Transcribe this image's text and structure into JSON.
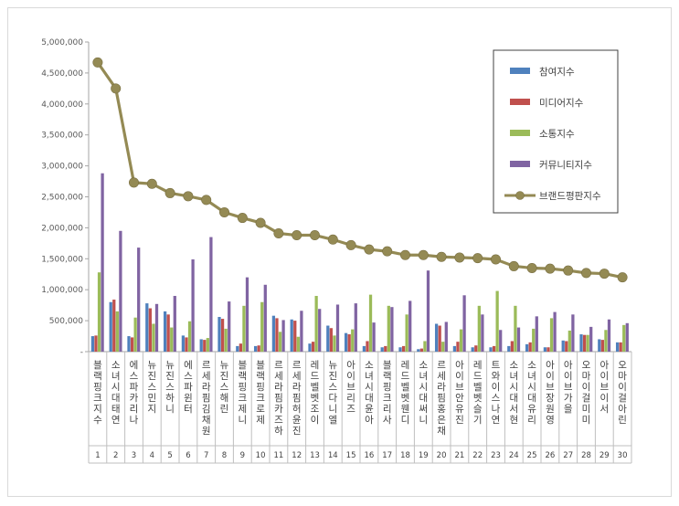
{
  "chart_data": {
    "type": "bar",
    "title": "",
    "xlabel": "",
    "ylabel": "",
    "ylim": [
      0,
      5000000
    ],
    "yticks": [
      "-",
      "500,000",
      "1,000,000",
      "1,500,000",
      "2,000,000",
      "2,500,000",
      "3,000,000",
      "3,500,000",
      "4,000,000",
      "4,500,000",
      "5,000,000"
    ],
    "grid": false,
    "legend_position": "top-right",
    "ranks": [
      "1",
      "2",
      "3",
      "4",
      "5",
      "6",
      "7",
      "8",
      "9",
      "10",
      "11",
      "12",
      "13",
      "14",
      "15",
      "16",
      "17",
      "18",
      "19",
      "20",
      "21",
      "22",
      "23",
      "24",
      "25",
      "26",
      "27",
      "28",
      "29",
      "30"
    ],
    "categories": [
      "블랙핑크 지수",
      "소녀시대 태연",
      "에스파 카리나",
      "뉴진스 민지",
      "뉴진스 하니",
      "에스파 윈터",
      "르세라핌 김채원",
      "뉴진스 해린",
      "블랙핑크 제니",
      "블랙핑크 로제",
      "르세라핌 카즈하",
      "르세라핌 허윤진",
      "레드벨벳 조이",
      "뉴진스 다니엘",
      "아이브 리즈",
      "소녀시대 윤아",
      "블랙핑크 리사",
      "레드벨벳 웬디",
      "소녀시대 써니",
      "르세라핌 홍은채",
      "아이브 안유진",
      "레드벨벳 슬기",
      "트와이스 나연",
      "소녀시대 서현",
      "소녀시대 유리",
      "아이브 장원영",
      "아이브 가을",
      "오마이걸 미미",
      "아이브 이서",
      "오마이걸 아린"
    ],
    "series": [
      {
        "name": "참여지수",
        "type": "bar",
        "color": "#4F81BD",
        "values": [
          250000,
          800000,
          250000,
          780000,
          650000,
          260000,
          200000,
          560000,
          90000,
          90000,
          580000,
          520000,
          130000,
          420000,
          300000,
          90000,
          70000,
          70000,
          40000,
          450000,
          90000,
          70000,
          70000,
          90000,
          120000,
          70000,
          180000,
          280000,
          200000,
          150000
        ]
      },
      {
        "name": "미디어지수",
        "type": "bar",
        "color": "#C0504D",
        "values": [
          260000,
          840000,
          230000,
          700000,
          600000,
          230000,
          190000,
          530000,
          130000,
          100000,
          540000,
          500000,
          160000,
          380000,
          280000,
          170000,
          90000,
          90000,
          50000,
          420000,
          160000,
          100000,
          90000,
          170000,
          150000,
          70000,
          170000,
          270000,
          190000,
          150000
        ]
      },
      {
        "name": "소통지수",
        "type": "bar",
        "color": "#9BBB59",
        "values": [
          1280000,
          650000,
          550000,
          450000,
          390000,
          490000,
          220000,
          370000,
          740000,
          800000,
          320000,
          240000,
          900000,
          260000,
          360000,
          920000,
          740000,
          600000,
          170000,
          160000,
          360000,
          740000,
          980000,
          740000,
          370000,
          540000,
          340000,
          270000,
          350000,
          430000
        ]
      },
      {
        "name": "커뮤니티지수",
        "type": "bar",
        "color": "#8064A2",
        "values": [
          2880000,
          1950000,
          1680000,
          770000,
          900000,
          1490000,
          1850000,
          810000,
          1200000,
          1080000,
          510000,
          660000,
          690000,
          760000,
          780000,
          470000,
          720000,
          820000,
          1310000,
          480000,
          910000,
          600000,
          350000,
          390000,
          570000,
          640000,
          600000,
          400000,
          520000,
          460000
        ]
      },
      {
        "name": "브랜드평판지수",
        "type": "line",
        "color": "#948A54",
        "values": [
          4670000,
          4250000,
          2730000,
          2710000,
          2560000,
          2510000,
          2450000,
          2250000,
          2160000,
          2080000,
          1910000,
          1880000,
          1880000,
          1810000,
          1720000,
          1650000,
          1620000,
          1560000,
          1560000,
          1530000,
          1520000,
          1510000,
          1490000,
          1380000,
          1350000,
          1340000,
          1310000,
          1270000,
          1260000,
          1200000
        ]
      }
    ]
  }
}
